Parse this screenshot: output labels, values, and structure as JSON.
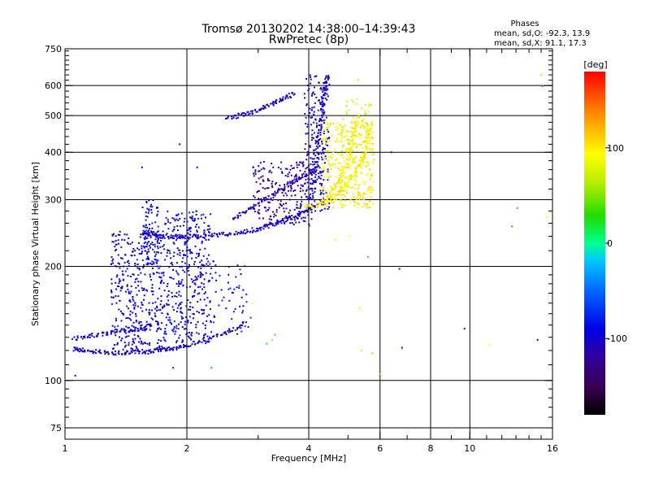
{
  "chart_data": {
    "type": "scatter",
    "title": "Tromsø 20130202 14:38:00–14:39:43",
    "subtitle": "RwPretec (8p)",
    "xlabel": "Frequency [MHz]",
    "ylabel": "Stationary phase Virtual Height [km]",
    "xscale": "log",
    "yscale": "log",
    "xlim": [
      1,
      16
    ],
    "ylim": [
      70,
      750
    ],
    "x_ticks": [
      1,
      2,
      4,
      6,
      8,
      10,
      16
    ],
    "y_ticks": [
      75,
      100,
      200,
      300,
      400,
      500,
      600,
      750
    ],
    "grid": true,
    "phase_stats": {
      "heading": "Phases",
      "line_o": "mean, sd,O: -92.3, 13.9",
      "line_x": "mean, sd,X:  91.1, 17.3"
    },
    "colorbar": {
      "label": "[deg]",
      "range": [
        -180,
        180
      ],
      "ticks": [
        -100,
        0,
        100
      ]
    },
    "traces": [
      {
        "phase": -100,
        "points": [
          [
            1.05,
            121
          ],
          [
            1.1,
            120
          ],
          [
            1.2,
            119
          ],
          [
            1.3,
            118
          ],
          [
            1.4,
            118
          ],
          [
            1.5,
            119
          ],
          [
            1.6,
            119
          ],
          [
            1.7,
            120
          ],
          [
            1.8,
            121
          ],
          [
            1.9,
            122
          ],
          [
            2.0,
            124
          ],
          [
            2.2,
            127
          ],
          [
            2.4,
            131
          ],
          [
            2.6,
            136
          ],
          [
            2.8,
            142
          ]
        ]
      },
      {
        "phase": -100,
        "points": [
          [
            1.05,
            129
          ],
          [
            1.15,
            131
          ],
          [
            1.25,
            133
          ],
          [
            1.35,
            135
          ],
          [
            1.45,
            136
          ],
          [
            1.55,
            137
          ],
          [
            1.65,
            140
          ]
        ]
      },
      {
        "phase": -105,
        "points": [
          [
            1.55,
            245
          ],
          [
            1.62,
            244
          ],
          [
            1.7,
            241
          ],
          [
            1.8,
            239
          ],
          [
            1.9,
            239
          ],
          [
            2.0,
            240
          ],
          [
            2.2,
            241
          ],
          [
            2.4,
            242
          ],
          [
            2.6,
            244
          ],
          [
            2.8,
            247
          ],
          [
            3.0,
            251
          ],
          [
            3.2,
            256
          ],
          [
            3.4,
            262
          ],
          [
            3.6,
            268
          ],
          [
            3.8,
            275
          ],
          [
            4.0,
            282
          ],
          [
            4.2,
            290
          ]
        ]
      },
      {
        "phase": -110,
        "points": [
          [
            2.6,
            268
          ],
          [
            2.8,
            280
          ],
          [
            3.0,
            292
          ],
          [
            3.2,
            305
          ],
          [
            3.4,
            318
          ],
          [
            3.6,
            330
          ],
          [
            3.8,
            342
          ],
          [
            4.0,
            352
          ],
          [
            4.2,
            365
          ]
        ]
      },
      {
        "phase": -100,
        "points": [
          [
            4.1,
            300
          ],
          [
            4.15,
            350
          ],
          [
            4.2,
            400
          ],
          [
            4.25,
            450
          ],
          [
            4.3,
            500
          ],
          [
            4.35,
            550
          ],
          [
            4.4,
            600
          ],
          [
            4.45,
            640
          ]
        ]
      },
      {
        "phase": -105,
        "points": [
          [
            2.5,
            490
          ],
          [
            2.7,
            500
          ],
          [
            2.9,
            510
          ],
          [
            3.1,
            525
          ],
          [
            3.3,
            540
          ],
          [
            3.5,
            555
          ],
          [
            3.7,
            575
          ]
        ]
      },
      {
        "phase": 100,
        "points": [
          [
            3.9,
            285
          ],
          [
            4.2,
            290
          ],
          [
            4.5,
            300
          ],
          [
            4.8,
            318
          ],
          [
            5.0,
            335
          ],
          [
            5.2,
            355
          ],
          [
            5.4,
            380
          ],
          [
            5.5,
            400
          ],
          [
            5.6,
            440
          ],
          [
            5.7,
            480
          ]
        ]
      },
      {
        "phase": 100,
        "points": [
          [
            4.4,
            300
          ],
          [
            4.6,
            320
          ],
          [
            4.8,
            345
          ],
          [
            5.0,
            375
          ],
          [
            5.1,
            410
          ],
          [
            5.2,
            450
          ],
          [
            5.3,
            500
          ]
        ]
      }
    ],
    "clouds": [
      {
        "phase": -95,
        "x": [
          1.3,
          1.75
        ],
        "y": [
          120,
          250
        ],
        "n": 380
      },
      {
        "phase": -95,
        "x": [
          1.75,
          2.3
        ],
        "y": [
          125,
          280
        ],
        "n": 380
      },
      {
        "phase": -90,
        "x": [
          1.55,
          1.7
        ],
        "y": [
          200,
          300
        ],
        "n": 80
      },
      {
        "phase": -85,
        "x": [
          2.3,
          2.9
        ],
        "y": [
          130,
          220
        ],
        "n": 50
      },
      {
        "phase": -120,
        "x": [
          2.9,
          4.1
        ],
        "y": [
          255,
          380
        ],
        "n": 220
      },
      {
        "phase": -100,
        "x": [
          3.9,
          4.5
        ],
        "y": [
          280,
          640
        ],
        "n": 220
      },
      {
        "phase": 95,
        "x": [
          4.3,
          5.8
        ],
        "y": [
          285,
          480
        ],
        "n": 360
      },
      {
        "phase": 80,
        "x": [
          4.8,
          5.7
        ],
        "y": [
          400,
          560
        ],
        "n": 60
      }
    ],
    "scattered": [
      {
        "x": 1.06,
        "y": 103,
        "phase": -100
      },
      {
        "x": 1.55,
        "y": 365,
        "phase": -100
      },
      {
        "x": 1.68,
        "y": 230,
        "phase": 100
      },
      {
        "x": 1.85,
        "y": 108,
        "phase": -100
      },
      {
        "x": 1.92,
        "y": 420,
        "phase": -100
      },
      {
        "x": 2.12,
        "y": 365,
        "phase": -95
      },
      {
        "x": 2.3,
        "y": 108,
        "phase": -30
      },
      {
        "x": 2.9,
        "y": 160,
        "phase": 100
      },
      {
        "x": 3.15,
        "y": 125,
        "phase": -20
      },
      {
        "x": 3.25,
        "y": 128,
        "phase": 60
      },
      {
        "x": 3.3,
        "y": 132,
        "phase": 20
      },
      {
        "x": 4.65,
        "y": 235,
        "phase": 100
      },
      {
        "x": 5.05,
        "y": 240,
        "phase": 100
      },
      {
        "x": 5.3,
        "y": 620,
        "phase": 110
      },
      {
        "x": 5.35,
        "y": 155,
        "phase": 90
      },
      {
        "x": 5.4,
        "y": 120,
        "phase": 80
      },
      {
        "x": 5.6,
        "y": 212,
        "phase": 150
      },
      {
        "x": 5.75,
        "y": 118,
        "phase": 60
      },
      {
        "x": 6.0,
        "y": 104,
        "phase": 130
      },
      {
        "x": 6.4,
        "y": 400,
        "phase": -100
      },
      {
        "x": 6.7,
        "y": 197,
        "phase": -110
      },
      {
        "x": 6.8,
        "y": 122,
        "phase": -110
      },
      {
        "x": 9.7,
        "y": 137,
        "phase": -120
      },
      {
        "x": 11.2,
        "y": 124,
        "phase": 90
      },
      {
        "x": 12.7,
        "y": 255,
        "phase": 150
      },
      {
        "x": 13.1,
        "y": 285,
        "phase": 30
      },
      {
        "x": 14.7,
        "y": 128,
        "phase": -110
      },
      {
        "x": 15.0,
        "y": 640,
        "phase": 110
      },
      {
        "x": 15.5,
        "y": 270,
        "phase": 90
      },
      {
        "x": 15.1,
        "y": 598,
        "phase": 170
      }
    ]
  }
}
